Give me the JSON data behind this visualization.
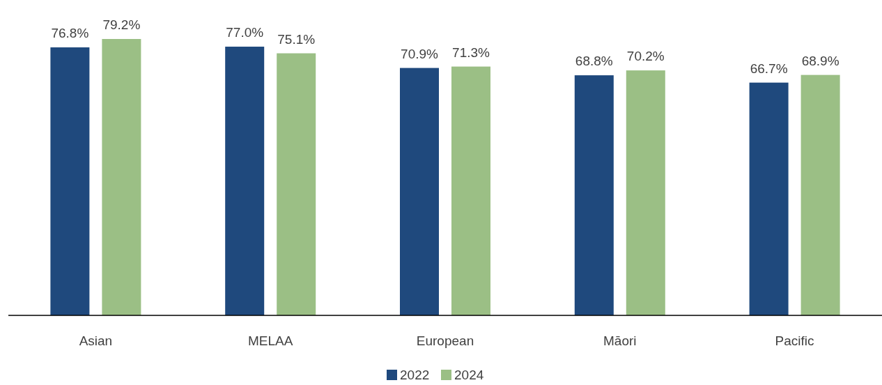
{
  "chart_data": {
    "type": "bar",
    "categories": [
      "Asian",
      "MELAA",
      "European",
      "Māori",
      "Pacific"
    ],
    "series": [
      {
        "name": "2022",
        "color": "#1f497d",
        "values": [
          76.8,
          77.0,
          70.9,
          68.8,
          66.7
        ],
        "value_labels": [
          "76.8%",
          "77.0%",
          "70.9%",
          "68.8%",
          "66.7%"
        ]
      },
      {
        "name": "2024",
        "color": "#9bbf85",
        "values": [
          79.2,
          75.1,
          71.3,
          70.2,
          68.9
        ],
        "value_labels": [
          "79.2%",
          "75.1%",
          "71.3%",
          "70.2%",
          "68.9%"
        ]
      }
    ],
    "relative": false,
    "legend": "bottom"
  }
}
